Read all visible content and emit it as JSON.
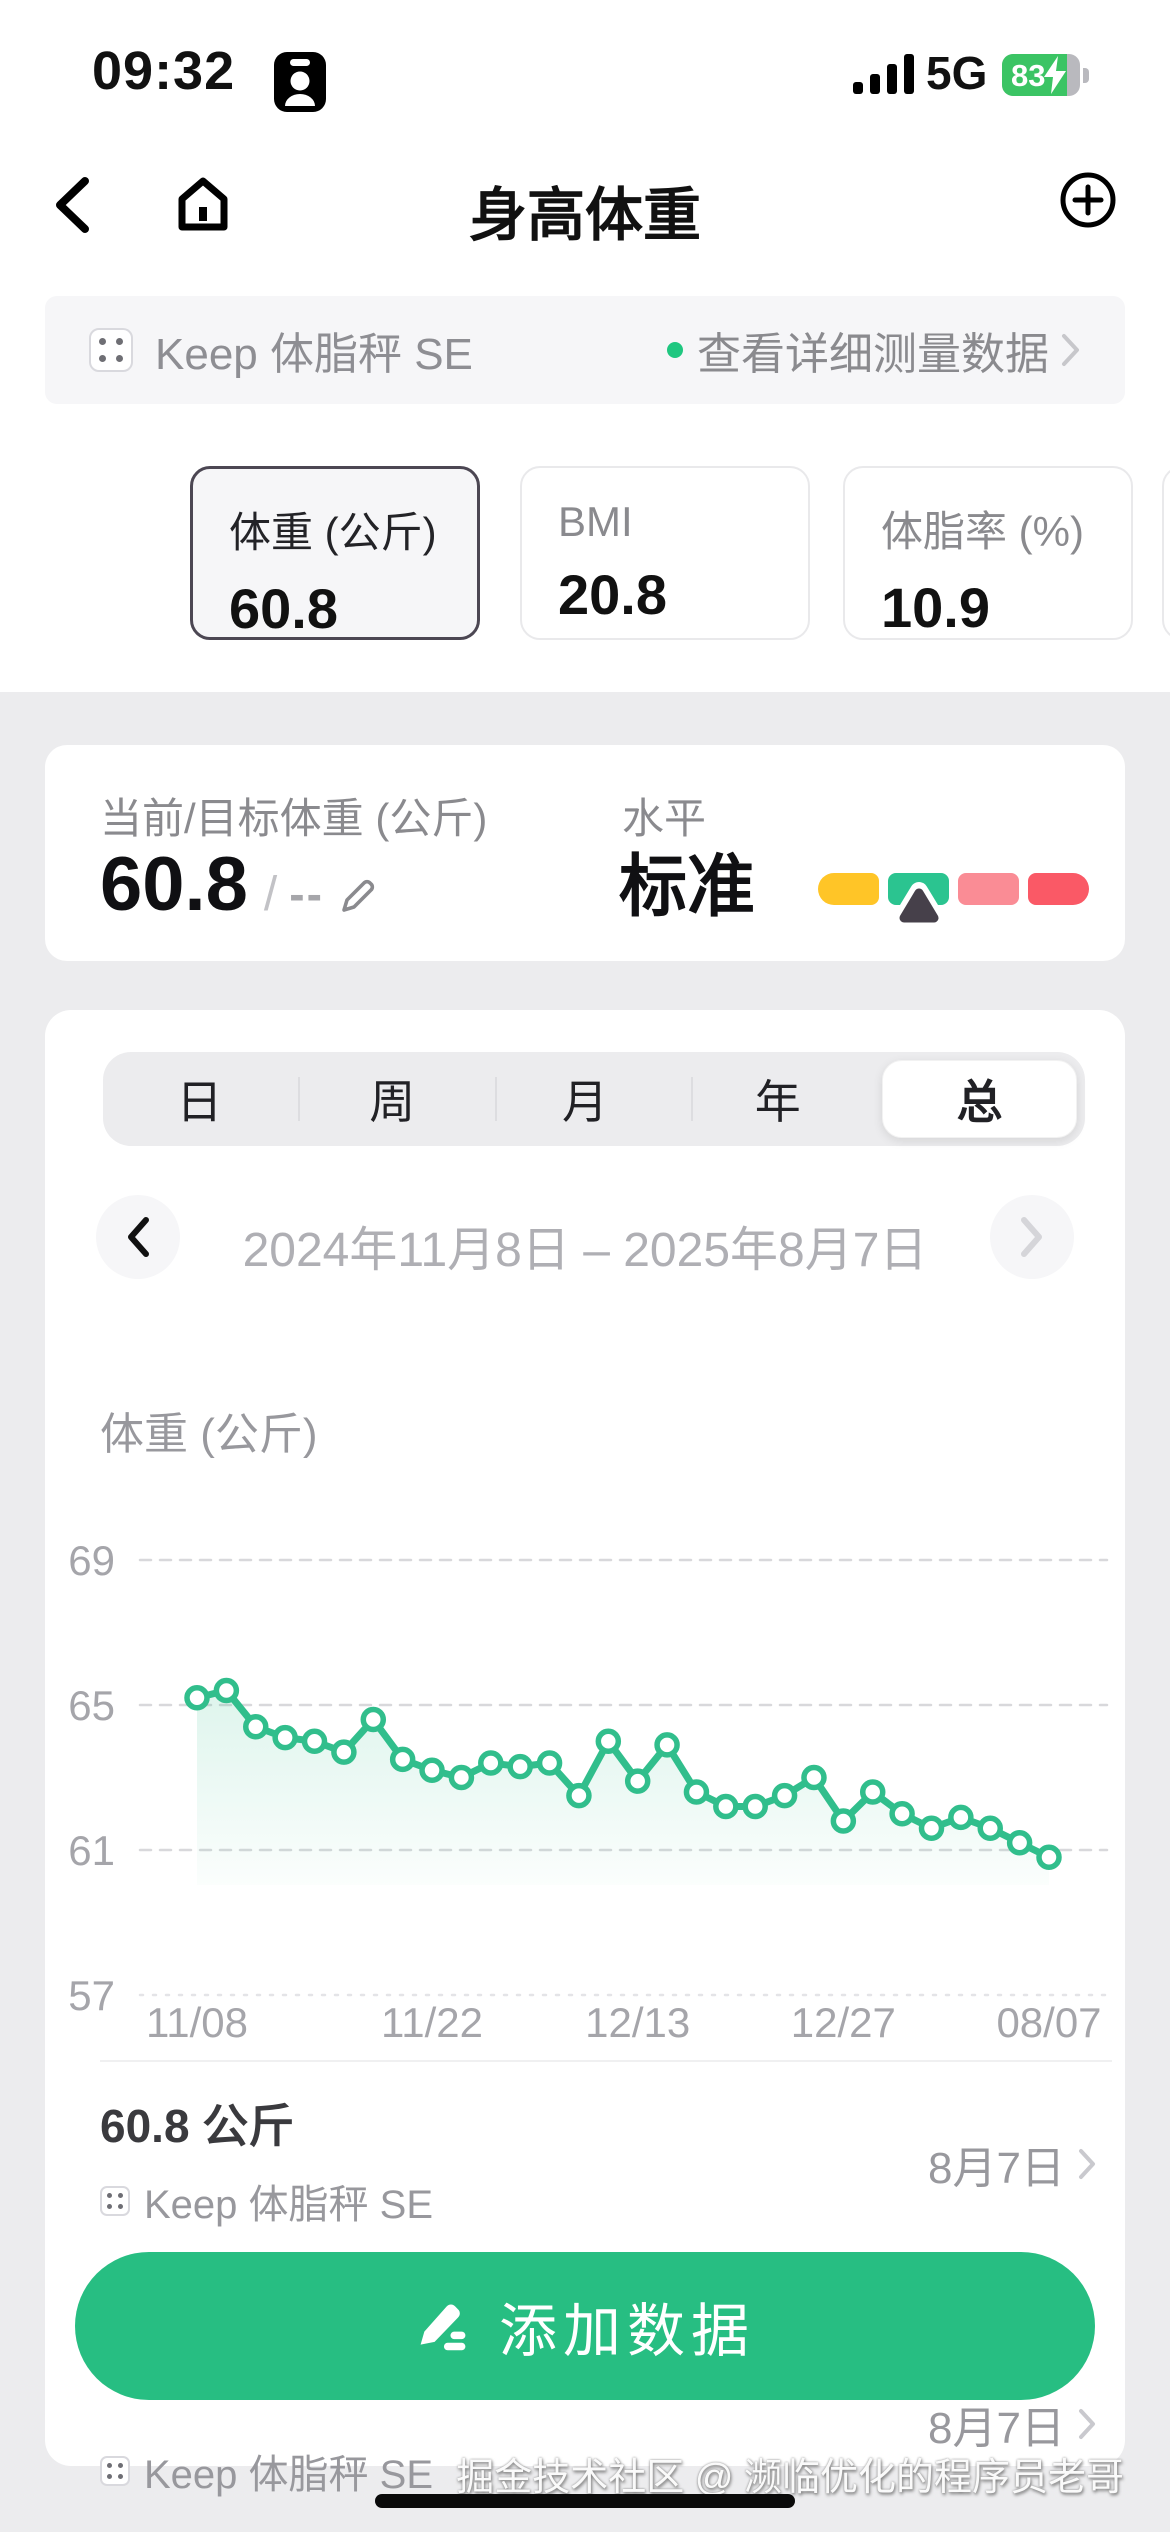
{
  "status_bar": {
    "time": "09:32",
    "network": "5G",
    "battery_percent": "83"
  },
  "nav": {
    "title": "身高体重"
  },
  "device_banner": {
    "name": "Keep 体脂秤 SE",
    "action": "查看详细测量数据",
    "status_dot_color": "#1FC780"
  },
  "metric_cards": [
    {
      "label": "体重 (公斤)",
      "value": "60.8",
      "selected": true
    },
    {
      "label": "BMI",
      "value": "20.8",
      "selected": false
    },
    {
      "label": "体脂率 (%)",
      "value": "10.9",
      "selected": false
    },
    {
      "partial": true
    }
  ],
  "target_card": {
    "label": "当前/目标体重 (公斤)",
    "current": "60.8",
    "separator": "/",
    "target": "--",
    "level_label": "水平",
    "level_value": "标准",
    "level_colors": [
      "#FFC527",
      "#2BC490",
      "#FA8C95",
      "#FA5966"
    ],
    "pointer_segment_index": 1,
    "pointer_color": "#46404A"
  },
  "period_tabs": {
    "items": [
      "日",
      "周",
      "月",
      "年",
      "总"
    ],
    "selected_index": 4
  },
  "date_nav": {
    "range": "2024年11月8日 – 2025年8月7日"
  },
  "chart_data": {
    "type": "line",
    "title": "体重 (公斤)",
    "ylabel": "体重 (公斤)",
    "y_ticks": [
      69,
      65,
      61,
      57
    ],
    "ylim": [
      57,
      69
    ],
    "grid": "dashed-horizontal",
    "line_color": "#31BE8C",
    "marker": "open-circle",
    "area_fill": true,
    "x_axis_labels": [
      "11/08",
      "11/22",
      "12/13",
      "12/27",
      "08/07"
    ],
    "x_label_indices": [
      0,
      8,
      15,
      22,
      29
    ],
    "values": [
      65.2,
      65.4,
      64.4,
      64.1,
      64.0,
      63.7,
      64.6,
      63.5,
      63.2,
      63.0,
      63.4,
      63.3,
      63.4,
      62.5,
      64.0,
      62.9,
      63.9,
      62.6,
      62.2,
      62.2,
      62.5,
      63.0,
      61.8,
      62.6,
      62.0,
      61.6,
      61.9,
      61.6,
      61.2,
      60.8
    ]
  },
  "records": [
    {
      "value": "60.8 公斤",
      "source": "Keep 体脂秤 SE",
      "date": "8月7日"
    },
    {
      "source": "Keep 体脂秤 SE",
      "date": "8月7日"
    }
  ],
  "add_button": {
    "label": "添加数据"
  },
  "watermark": "掘金技术社区 @ 濒临优化的程序员老哥",
  "colors": {
    "brand_green": "#27BE82",
    "page_bg": "#ECECEE",
    "banner_bg": "#F6F6F8"
  }
}
